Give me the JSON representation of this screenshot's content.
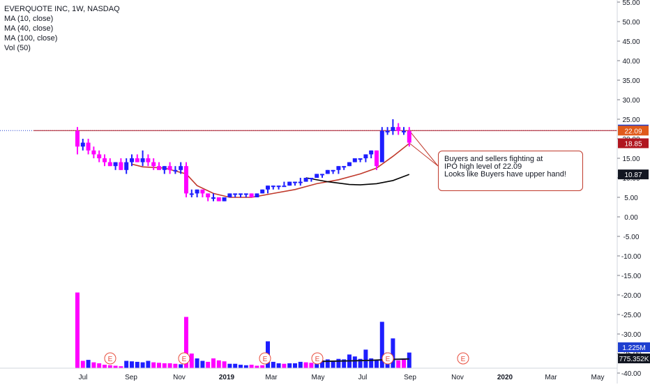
{
  "legend": {
    "symbol": "EVERQUOTE INC, 1W, NASDAQ",
    "ma10": "MA (10, close)",
    "ma40": "MA (40, close)",
    "ma100": "MA (100, close)",
    "vol": "Vol (50)"
  },
  "annotation": {
    "line1": "Buyers and sellers fighting at",
    "line2": "IPO high level of 22.09",
    "line3": "Looks like Buyers have upper hand!"
  },
  "price_badges": [
    {
      "label": "22.36",
      "value": 22.36,
      "color": "#1e3fd0"
    },
    {
      "label": "22.09",
      "value": 22.09,
      "color": "#e05a1b"
    },
    {
      "label": "18.85",
      "value": 18.85,
      "color": "#b0161f"
    },
    {
      "label": "10.87",
      "value": 10.87,
      "color": "#131722"
    }
  ],
  "volume_badges": [
    {
      "label": "1.225M",
      "color": "#1e3fd0"
    },
    {
      "label": "775.352K",
      "color": "#131722"
    }
  ],
  "colors": {
    "up": "#1e1eff",
    "down": "#ff00ff",
    "ma10": "#c0392b",
    "ma40": "#000000",
    "ipo_line": "#1e3fd0"
  },
  "chart_data": {
    "type": "candlestick",
    "title": "EVERQUOTE INC, 1W, NASDAQ",
    "y_ticks": [
      "55.00",
      "50.00",
      "45.00",
      "40.00",
      "35.00",
      "30.00",
      "25.00",
      "20.00",
      "15.00",
      "10.00",
      "5.00",
      "0.00",
      "-5.00",
      "-10.00",
      "-15.00",
      "-20.00",
      "-25.00",
      "-30.00",
      "-35.00",
      "-40.00"
    ],
    "ylim": [
      -40,
      55
    ],
    "x_ticks": [
      "Jul",
      "Sep",
      "Nov",
      "2019",
      "Mar",
      "May",
      "Jul",
      "Sep",
      "Nov",
      "2020",
      "Mar",
      "May"
    ],
    "horizontal_line": 22.09,
    "earnings_markers": [
      "E",
      "E",
      "E",
      "E",
      "E",
      "E"
    ],
    "candles": [
      [
        22,
        23,
        16,
        18
      ],
      [
        18,
        20,
        17,
        19
      ],
      [
        19,
        20,
        16,
        17
      ],
      [
        17,
        18,
        15,
        16
      ],
      [
        16,
        17,
        14,
        15
      ],
      [
        15,
        16,
        13,
        14
      ],
      [
        14,
        15,
        13,
        13
      ],
      [
        13,
        14,
        12,
        14
      ],
      [
        14,
        15,
        12,
        12
      ],
      [
        12,
        15,
        11,
        14
      ],
      [
        14,
        16,
        13,
        15
      ],
      [
        15,
        16,
        14,
        14
      ],
      [
        14,
        17,
        13,
        15
      ],
      [
        15,
        16,
        13,
        14
      ],
      [
        14,
        15,
        12,
        13
      ],
      [
        13,
        14,
        12,
        12
      ],
      [
        12,
        13,
        11,
        13
      ],
      [
        13,
        14,
        11,
        12
      ],
      [
        12,
        13,
        11,
        12
      ],
      [
        12,
        14,
        11,
        13
      ],
      [
        13,
        14,
        5,
        6
      ],
      [
        6,
        7,
        5,
        6
      ],
      [
        6,
        7,
        5,
        7
      ],
      [
        7,
        7,
        5,
        6
      ],
      [
        6,
        6,
        4,
        5
      ],
      [
        5,
        6,
        4,
        5
      ],
      [
        5,
        5,
        4,
        4
      ],
      [
        4,
        5,
        4,
        5
      ],
      [
        5,
        6,
        5,
        6
      ],
      [
        6,
        6,
        5,
        6
      ],
      [
        6,
        6,
        5,
        6
      ],
      [
        6,
        6,
        5,
        6
      ],
      [
        6,
        6,
        5,
        5
      ],
      [
        5,
        6,
        5,
        6
      ],
      [
        6,
        7,
        6,
        7
      ],
      [
        7,
        8,
        6,
        8
      ],
      [
        8,
        8,
        7,
        8
      ],
      [
        8,
        8,
        7,
        8
      ],
      [
        8,
        9,
        8,
        8
      ],
      [
        8,
        9,
        8,
        9
      ],
      [
        9,
        9,
        8,
        9
      ],
      [
        9,
        10,
        8,
        9
      ],
      [
        9,
        10,
        9,
        10
      ],
      [
        10,
        10,
        9,
        10
      ],
      [
        10,
        11,
        10,
        11
      ],
      [
        11,
        11,
        10,
        11
      ],
      [
        11,
        12,
        11,
        12
      ],
      [
        12,
        12,
        11,
        12
      ],
      [
        12,
        13,
        11,
        13
      ],
      [
        13,
        13,
        12,
        13
      ],
      [
        13,
        14,
        13,
        14
      ],
      [
        14,
        15,
        14,
        15
      ],
      [
        15,
        15,
        14,
        15
      ],
      [
        15,
        16,
        14,
        16
      ],
      [
        16,
        17,
        15,
        17
      ],
      [
        17,
        17,
        12,
        13
      ],
      [
        14,
        23,
        14,
        22
      ],
      [
        22,
        23,
        21,
        22
      ],
      [
        22,
        25,
        21,
        23
      ],
      [
        23,
        24,
        21,
        22
      ],
      [
        22,
        23,
        21,
        22
      ],
      [
        22,
        23,
        18,
        19
      ]
    ],
    "volume": [
      [
        15.5,
        0
      ],
      [
        1.5,
        0
      ],
      [
        1.7,
        1
      ],
      [
        1.2,
        0
      ],
      [
        1.0,
        0
      ],
      [
        0.7,
        0
      ],
      [
        0.6,
        0
      ],
      [
        0.5,
        0
      ],
      [
        0.4,
        0
      ],
      [
        1.5,
        1
      ],
      [
        1.4,
        1
      ],
      [
        1.3,
        1
      ],
      [
        1.2,
        1
      ],
      [
        1.5,
        1
      ],
      [
        1.2,
        0
      ],
      [
        1.1,
        0
      ],
      [
        1.0,
        0
      ],
      [
        1.0,
        0
      ],
      [
        0.9,
        0
      ],
      [
        0.8,
        1
      ],
      [
        10.5,
        0
      ],
      [
        3.0,
        0
      ],
      [
        2.0,
        1
      ],
      [
        1.5,
        1
      ],
      [
        1.3,
        0
      ],
      [
        2.0,
        0
      ],
      [
        1.6,
        0
      ],
      [
        1.4,
        0
      ],
      [
        0.9,
        1
      ],
      [
        0.9,
        1
      ],
      [
        0.7,
        1
      ],
      [
        0.6,
        1
      ],
      [
        0.7,
        0
      ],
      [
        0.5,
        0
      ],
      [
        0.6,
        0
      ],
      [
        5.5,
        1
      ],
      [
        1.3,
        1
      ],
      [
        1.0,
        1
      ],
      [
        0.9,
        0
      ],
      [
        1.0,
        1
      ],
      [
        1.0,
        1
      ],
      [
        1.3,
        1
      ],
      [
        1.2,
        0
      ],
      [
        1.1,
        0
      ],
      [
        1.5,
        1
      ],
      [
        1.6,
        1
      ],
      [
        1.8,
        1
      ],
      [
        1.4,
        1
      ],
      [
        1.9,
        1
      ],
      [
        1.8,
        1
      ],
      [
        2.8,
        1
      ],
      [
        2.4,
        1
      ],
      [
        1.9,
        1
      ],
      [
        3.8,
        1
      ],
      [
        2.0,
        1
      ],
      [
        1.6,
        1
      ],
      [
        9.5,
        1
      ],
      [
        3.2,
        1
      ],
      [
        6.1,
        1
      ],
      [
        1.6,
        0
      ],
      [
        1.8,
        0
      ],
      [
        3.2,
        1
      ]
    ],
    "ma10": [
      [
        10,
        13.5
      ],
      [
        12,
        12.8
      ],
      [
        16,
        12.5
      ],
      [
        20,
        11
      ],
      [
        22,
        8
      ],
      [
        25,
        6
      ],
      [
        28,
        5
      ],
      [
        32,
        5
      ],
      [
        36,
        6
      ],
      [
        40,
        7
      ],
      [
        44,
        8.5
      ],
      [
        48,
        9.5
      ],
      [
        52,
        11
      ],
      [
        55,
        12.5
      ],
      [
        58,
        15.5
      ],
      [
        61,
        18.8
      ]
    ],
    "ma40": [
      [
        42,
        10
      ],
      [
        46,
        9
      ],
      [
        50,
        8.3
      ],
      [
        52,
        8.2
      ],
      [
        55,
        8.5
      ],
      [
        58,
        9.3
      ],
      [
        61,
        10.87
      ]
    ]
  }
}
